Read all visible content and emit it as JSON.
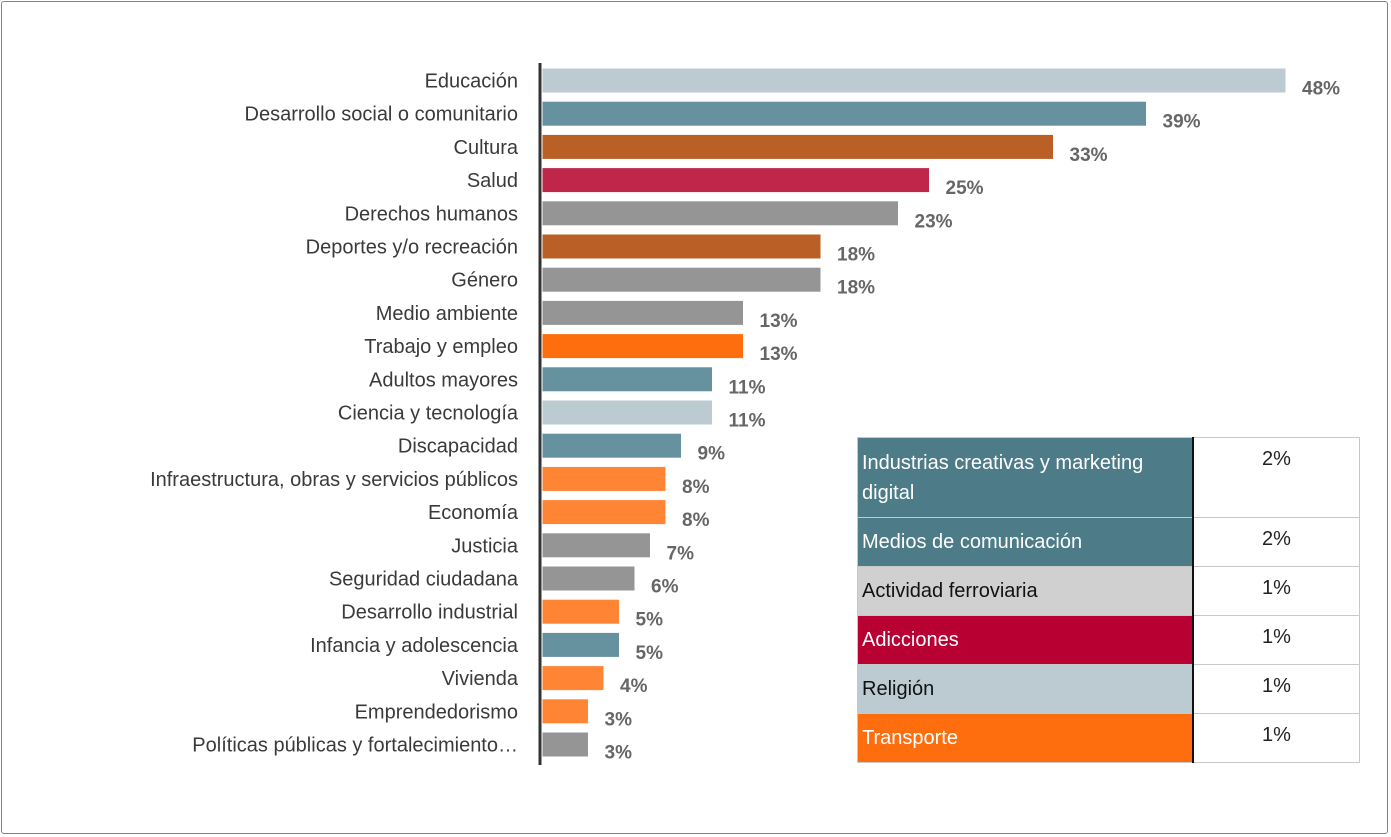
{
  "chart_data": {
    "type": "bar",
    "orientation": "horizontal",
    "categories": [
      "Educación",
      "Desarrollo social o comunitario",
      "Cultura",
      "Salud",
      "Derechos humanos",
      "Deportes y/o recreación",
      "Género",
      "Medio ambiente",
      "Trabajo y empleo",
      "Adultos mayores",
      "Ciencia y tecnología",
      "Discapacidad",
      "Infraestructura, obras y servicios públicos",
      "Economía",
      "Justicia",
      "Seguridad ciudadana",
      "Desarrollo industrial",
      "Infancia y adolescencia",
      "Vivienda",
      "Emprendedorismo",
      "Políticas públicas y fortalecimiento…"
    ],
    "values": [
      48,
      39,
      33,
      25,
      23,
      18,
      18,
      13,
      13,
      11,
      11,
      9,
      8,
      8,
      7,
      6,
      5,
      5,
      4,
      3,
      3
    ],
    "value_labels": [
      "48%",
      "39%",
      "33%",
      "25%",
      "23%",
      "18%",
      "18%",
      "13%",
      "13%",
      "11%",
      "11%",
      "9%",
      "8%",
      "8%",
      "7%",
      "6%",
      "5%",
      "5%",
      "4%",
      "3%",
      "3%"
    ],
    "colors": [
      "#bccbd2",
      "#66919f",
      "#ba5f26",
      "#c0264a",
      "#959595",
      "#ba5f26",
      "#959595",
      "#959595",
      "#ff6e0e",
      "#66919f",
      "#bccbd2",
      "#66919f",
      "#ff8535",
      "#ff8535",
      "#959595",
      "#959595",
      "#ff8535",
      "#66919f",
      "#ff8535",
      "#ff8535",
      "#959595"
    ],
    "xlim": [
      0,
      48
    ],
    "grid": false,
    "legend": "none"
  },
  "extra_table": {
    "rows": [
      {
        "label": "Industrias creativas y marketing digital",
        "value": "2%",
        "bg": "#4d7b88",
        "fg": "#ffffff"
      },
      {
        "label": "Medios de comunicación",
        "value": "2%",
        "bg": "#4d7b88",
        "fg": "#ffffff"
      },
      {
        "label": "Actividad ferroviaria",
        "value": "1%",
        "bg": "#d0d0d0",
        "fg": "#111111"
      },
      {
        "label": "Adicciones",
        "value": "1%",
        "bg": "#b80032",
        "fg": "#ffffff"
      },
      {
        "label": "Religión",
        "value": "1%",
        "bg": "#bccbd2",
        "fg": "#111111"
      },
      {
        "label": "Transporte",
        "value": "1%",
        "bg": "#ff6e0e",
        "fg": "#ffffff"
      }
    ]
  }
}
